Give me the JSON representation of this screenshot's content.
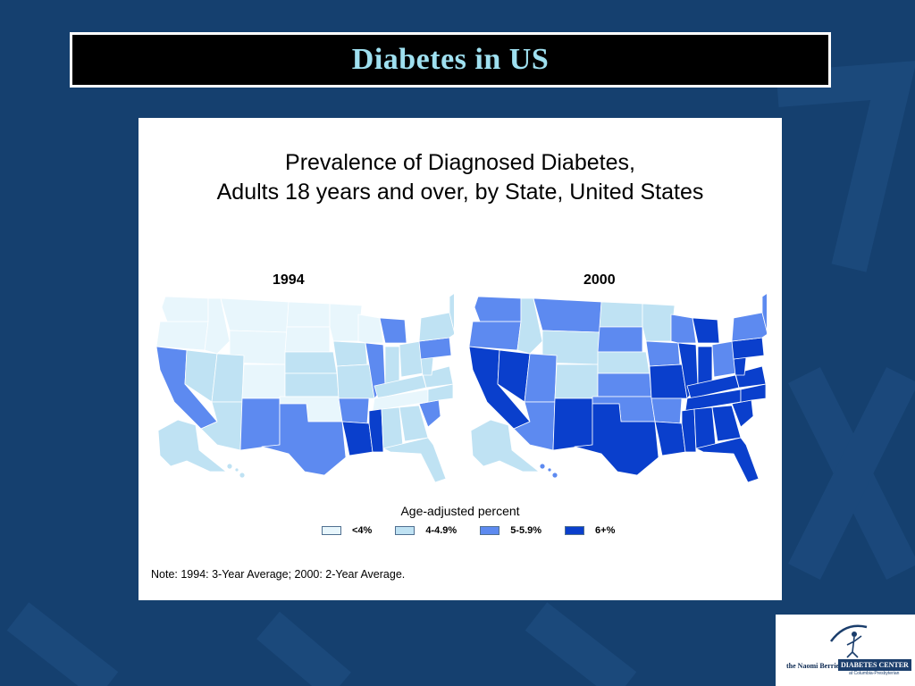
{
  "slide": {
    "title": "Diabetes in US"
  },
  "figure": {
    "title_line1": "Prevalence of Diagnosed Diabetes,",
    "title_line2": "Adults 18 years and over, by State, United States",
    "note": "Note: 1994: 3-Year Average; 2000: 2-Year Average."
  },
  "maps": [
    {
      "year": "1994"
    },
    {
      "year": "2000"
    }
  ],
  "legend": {
    "title": "Age-adjusted percent",
    "items": [
      {
        "label": "<4%",
        "color": "#e8f6fc"
      },
      {
        "label": "4-4.9%",
        "color": "#bfe2f3"
      },
      {
        "label": "5-5.9%",
        "color": "#5d8af0"
      },
      {
        "label": "6+%",
        "color": "#0a3fcc"
      }
    ]
  },
  "logo": {
    "name": "the Naomi Berrie",
    "center": "DIABETES CENTER",
    "sub": "at Columbia-Presbyterian"
  },
  "colors": {
    "background": "#15406f",
    "title_text": "#9fe0f0",
    "class_lt4": "#e8f6fc",
    "class_4_49": "#bfe2f3",
    "class_5_59": "#5d8af0",
    "class_6plus": "#0a3fcc"
  }
}
